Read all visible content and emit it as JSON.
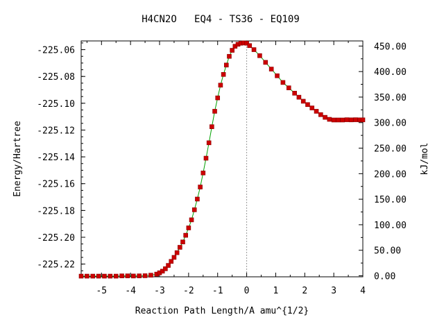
{
  "chart_data": {
    "type": "line",
    "title": "H4CN2O   EQ4 - TS36 - EQ109",
    "xlabel": "Reaction Path Length/A amu^{1/2}",
    "ylabel_left": "Energy/Hartree",
    "ylabel_right": "kJ/mol",
    "xlim": [
      -5.7,
      4.0
    ],
    "ylim_left": [
      -225.2295,
      -225.0535
    ],
    "ylim_right": [
      -2.0,
      460.0
    ],
    "x_ticks": [
      -5,
      -4,
      -3,
      -2,
      -1,
      0,
      1,
      2,
      3,
      4
    ],
    "x_tick_labels": [
      "-5",
      "-4",
      "-3",
      "-2",
      "-1",
      "0",
      "1",
      "2",
      "3",
      "4"
    ],
    "y_left_ticks": [
      -225.22,
      -225.2,
      -225.18,
      -225.16,
      -225.14,
      -225.12,
      -225.1,
      -225.08,
      -225.06
    ],
    "y_left_tick_labels": [
      "-225.22",
      "-225.20",
      "-225.18",
      "-225.16",
      "-225.14",
      "-225.12",
      "-225.10",
      "-225.08",
      "-225.06"
    ],
    "y_right_ticks": [
      0,
      50,
      100,
      150,
      200,
      250,
      300,
      350,
      400,
      450
    ],
    "y_right_tick_labels": [
      "0.00",
      "50.00",
      "100.00",
      "150.00",
      "200.00",
      "250.00",
      "300.00",
      "350.00",
      "400.00",
      "450.00"
    ],
    "ts_marker_x": 0,
    "colors": {
      "line": "#00a000",
      "marker": "#cc0000",
      "marker_edge": "#8b0000",
      "ts_line": "#999999"
    },
    "series": [
      {
        "x": [
          -5.7,
          -5.5,
          -5.3,
          -5.1,
          -4.9,
          -4.7,
          -4.5,
          -4.3,
          -4.1,
          -3.9,
          -3.7,
          -3.5,
          -3.3,
          -3.1,
          -3.0,
          -2.9,
          -2.8,
          -2.7,
          -2.6,
          -2.5,
          -2.4,
          -2.3,
          -2.2,
          -2.1,
          -2.0,
          -1.9,
          -1.8,
          -1.7,
          -1.6,
          -1.5,
          -1.4,
          -1.3,
          -1.2,
          -1.1,
          -1.0,
          -0.9,
          -0.8,
          -0.7,
          -0.6,
          -0.5,
          -0.4,
          -0.3,
          -0.2,
          -0.1,
          0.0,
          0.1,
          0.25,
          0.45,
          0.65,
          0.85,
          1.05,
          1.25,
          1.45,
          1.65,
          1.8,
          1.95,
          2.1,
          2.25,
          2.4,
          2.55,
          2.7,
          2.85,
          3.0,
          3.15,
          3.3,
          3.45,
          3.6,
          3.75,
          3.9,
          4.0
        ],
        "y": [
          -225.229,
          -225.229,
          -225.229,
          -225.229,
          -225.229,
          -225.229,
          -225.229,
          -225.2288,
          -225.2288,
          -225.2289,
          -225.2288,
          -225.2287,
          -225.2283,
          -225.2275,
          -225.2265,
          -225.2253,
          -225.2235,
          -225.221,
          -225.218,
          -225.215,
          -225.2115,
          -225.2075,
          -225.2035,
          -225.1985,
          -225.193,
          -225.187,
          -225.1795,
          -225.1715,
          -225.1625,
          -225.152,
          -225.141,
          -225.1295,
          -225.1175,
          -225.106,
          -225.096,
          -225.0865,
          -225.0785,
          -225.0715,
          -225.065,
          -225.0605,
          -225.0575,
          -225.056,
          -225.0552,
          -225.055,
          -225.0552,
          -225.057,
          -225.06,
          -225.0645,
          -225.0695,
          -225.0745,
          -225.0795,
          -225.0845,
          -225.0885,
          -225.0925,
          -225.0955,
          -225.0985,
          -225.101,
          -225.1035,
          -225.106,
          -225.1085,
          -225.1105,
          -225.112,
          -225.1125,
          -225.1125,
          -225.1125,
          -225.1123,
          -225.1124,
          -225.1123,
          -225.1124,
          -225.1124
        ]
      }
    ]
  }
}
